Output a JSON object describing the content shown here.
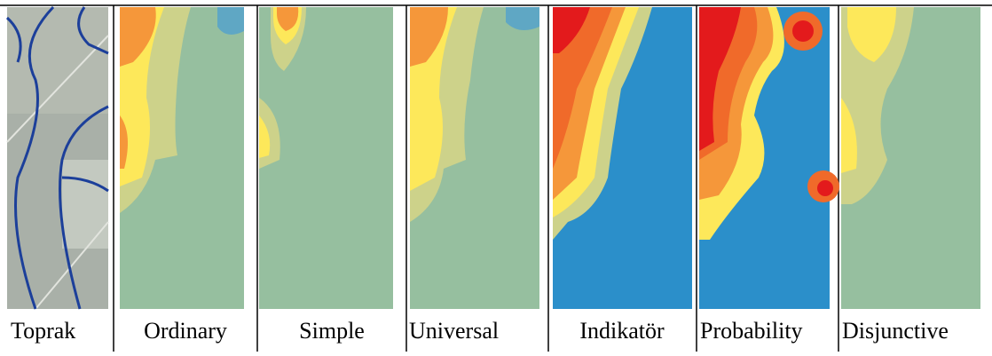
{
  "captions": [
    "Toprak",
    "Ordinary",
    "Simple",
    "Universal",
    "Indikatör",
    "Probability",
    "Disjunctive"
  ]
}
